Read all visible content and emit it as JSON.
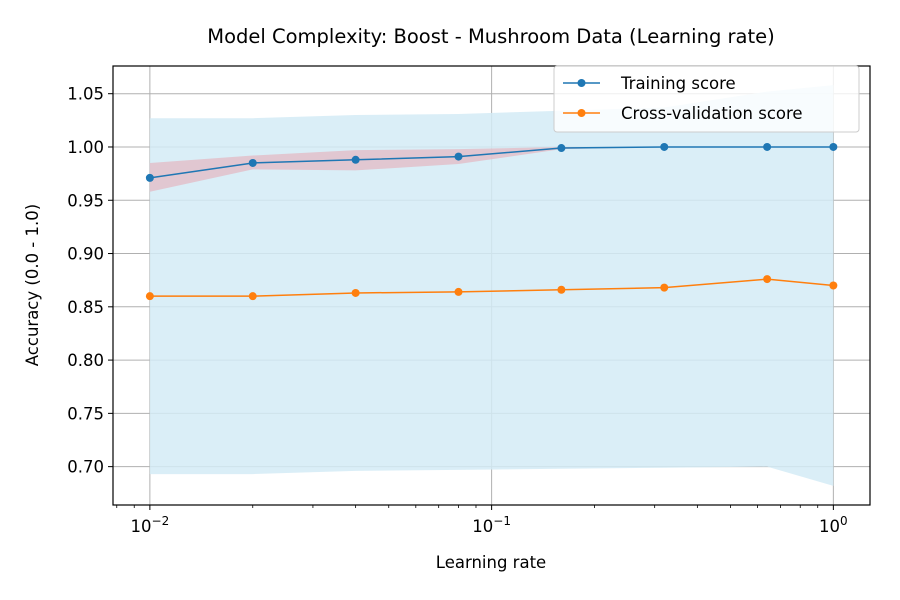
{
  "chart_data": {
    "type": "line",
    "title": "Model Complexity: Boost - Mushroom Data (Learning rate)",
    "xlabel": "Learning rate",
    "ylabel": "Accuracy (0.0 - 1.0)",
    "xscale": "log",
    "xlim": [
      0.0078,
      1.28
    ],
    "ylim": [
      0.664,
      1.076
    ],
    "grid": true,
    "legend_position": "top-right",
    "x_ticks": [
      {
        "value": 0.01,
        "base": "10",
        "exp": "−2"
      },
      {
        "value": 0.1,
        "base": "10",
        "exp": "−1"
      },
      {
        "value": 1,
        "base": "10",
        "exp": "0"
      }
    ],
    "y_ticks": [
      {
        "value": 0.7,
        "label": "0.70"
      },
      {
        "value": 0.75,
        "label": "0.75"
      },
      {
        "value": 0.8,
        "label": "0.80"
      },
      {
        "value": 0.85,
        "label": "0.85"
      },
      {
        "value": 0.9,
        "label": "0.90"
      },
      {
        "value": 0.95,
        "label": "0.95"
      },
      {
        "value": 1.0,
        "label": "1.00"
      },
      {
        "value": 1.05,
        "label": "1.05"
      }
    ],
    "x": [
      0.01,
      0.02,
      0.04,
      0.08,
      0.16,
      0.32,
      0.64,
      1.0
    ],
    "series": [
      {
        "name": "Training score",
        "color": "#1f77b4",
        "band_color": "#e3b9c4",
        "values": [
          0.971,
          0.985,
          0.988,
          0.991,
          0.999,
          1.0,
          1.0,
          1.0
        ],
        "lower": [
          0.958,
          0.979,
          0.978,
          0.984,
          0.998,
          1.0,
          1.0,
          1.0
        ],
        "upper": [
          0.985,
          0.992,
          0.997,
          0.998,
          1.0,
          1.0,
          1.0,
          1.0
        ]
      },
      {
        "name": "Cross-validation score",
        "color": "#ff7f0e",
        "band_color": "#d3ebf6",
        "values": [
          0.86,
          0.86,
          0.863,
          0.864,
          0.866,
          0.868,
          0.876,
          0.87
        ],
        "lower": [
          0.693,
          0.693,
          0.696,
          0.697,
          0.698,
          0.699,
          0.7,
          0.682
        ],
        "upper": [
          1.027,
          1.027,
          1.03,
          1.031,
          1.034,
          1.037,
          1.052,
          1.058
        ]
      }
    ]
  }
}
